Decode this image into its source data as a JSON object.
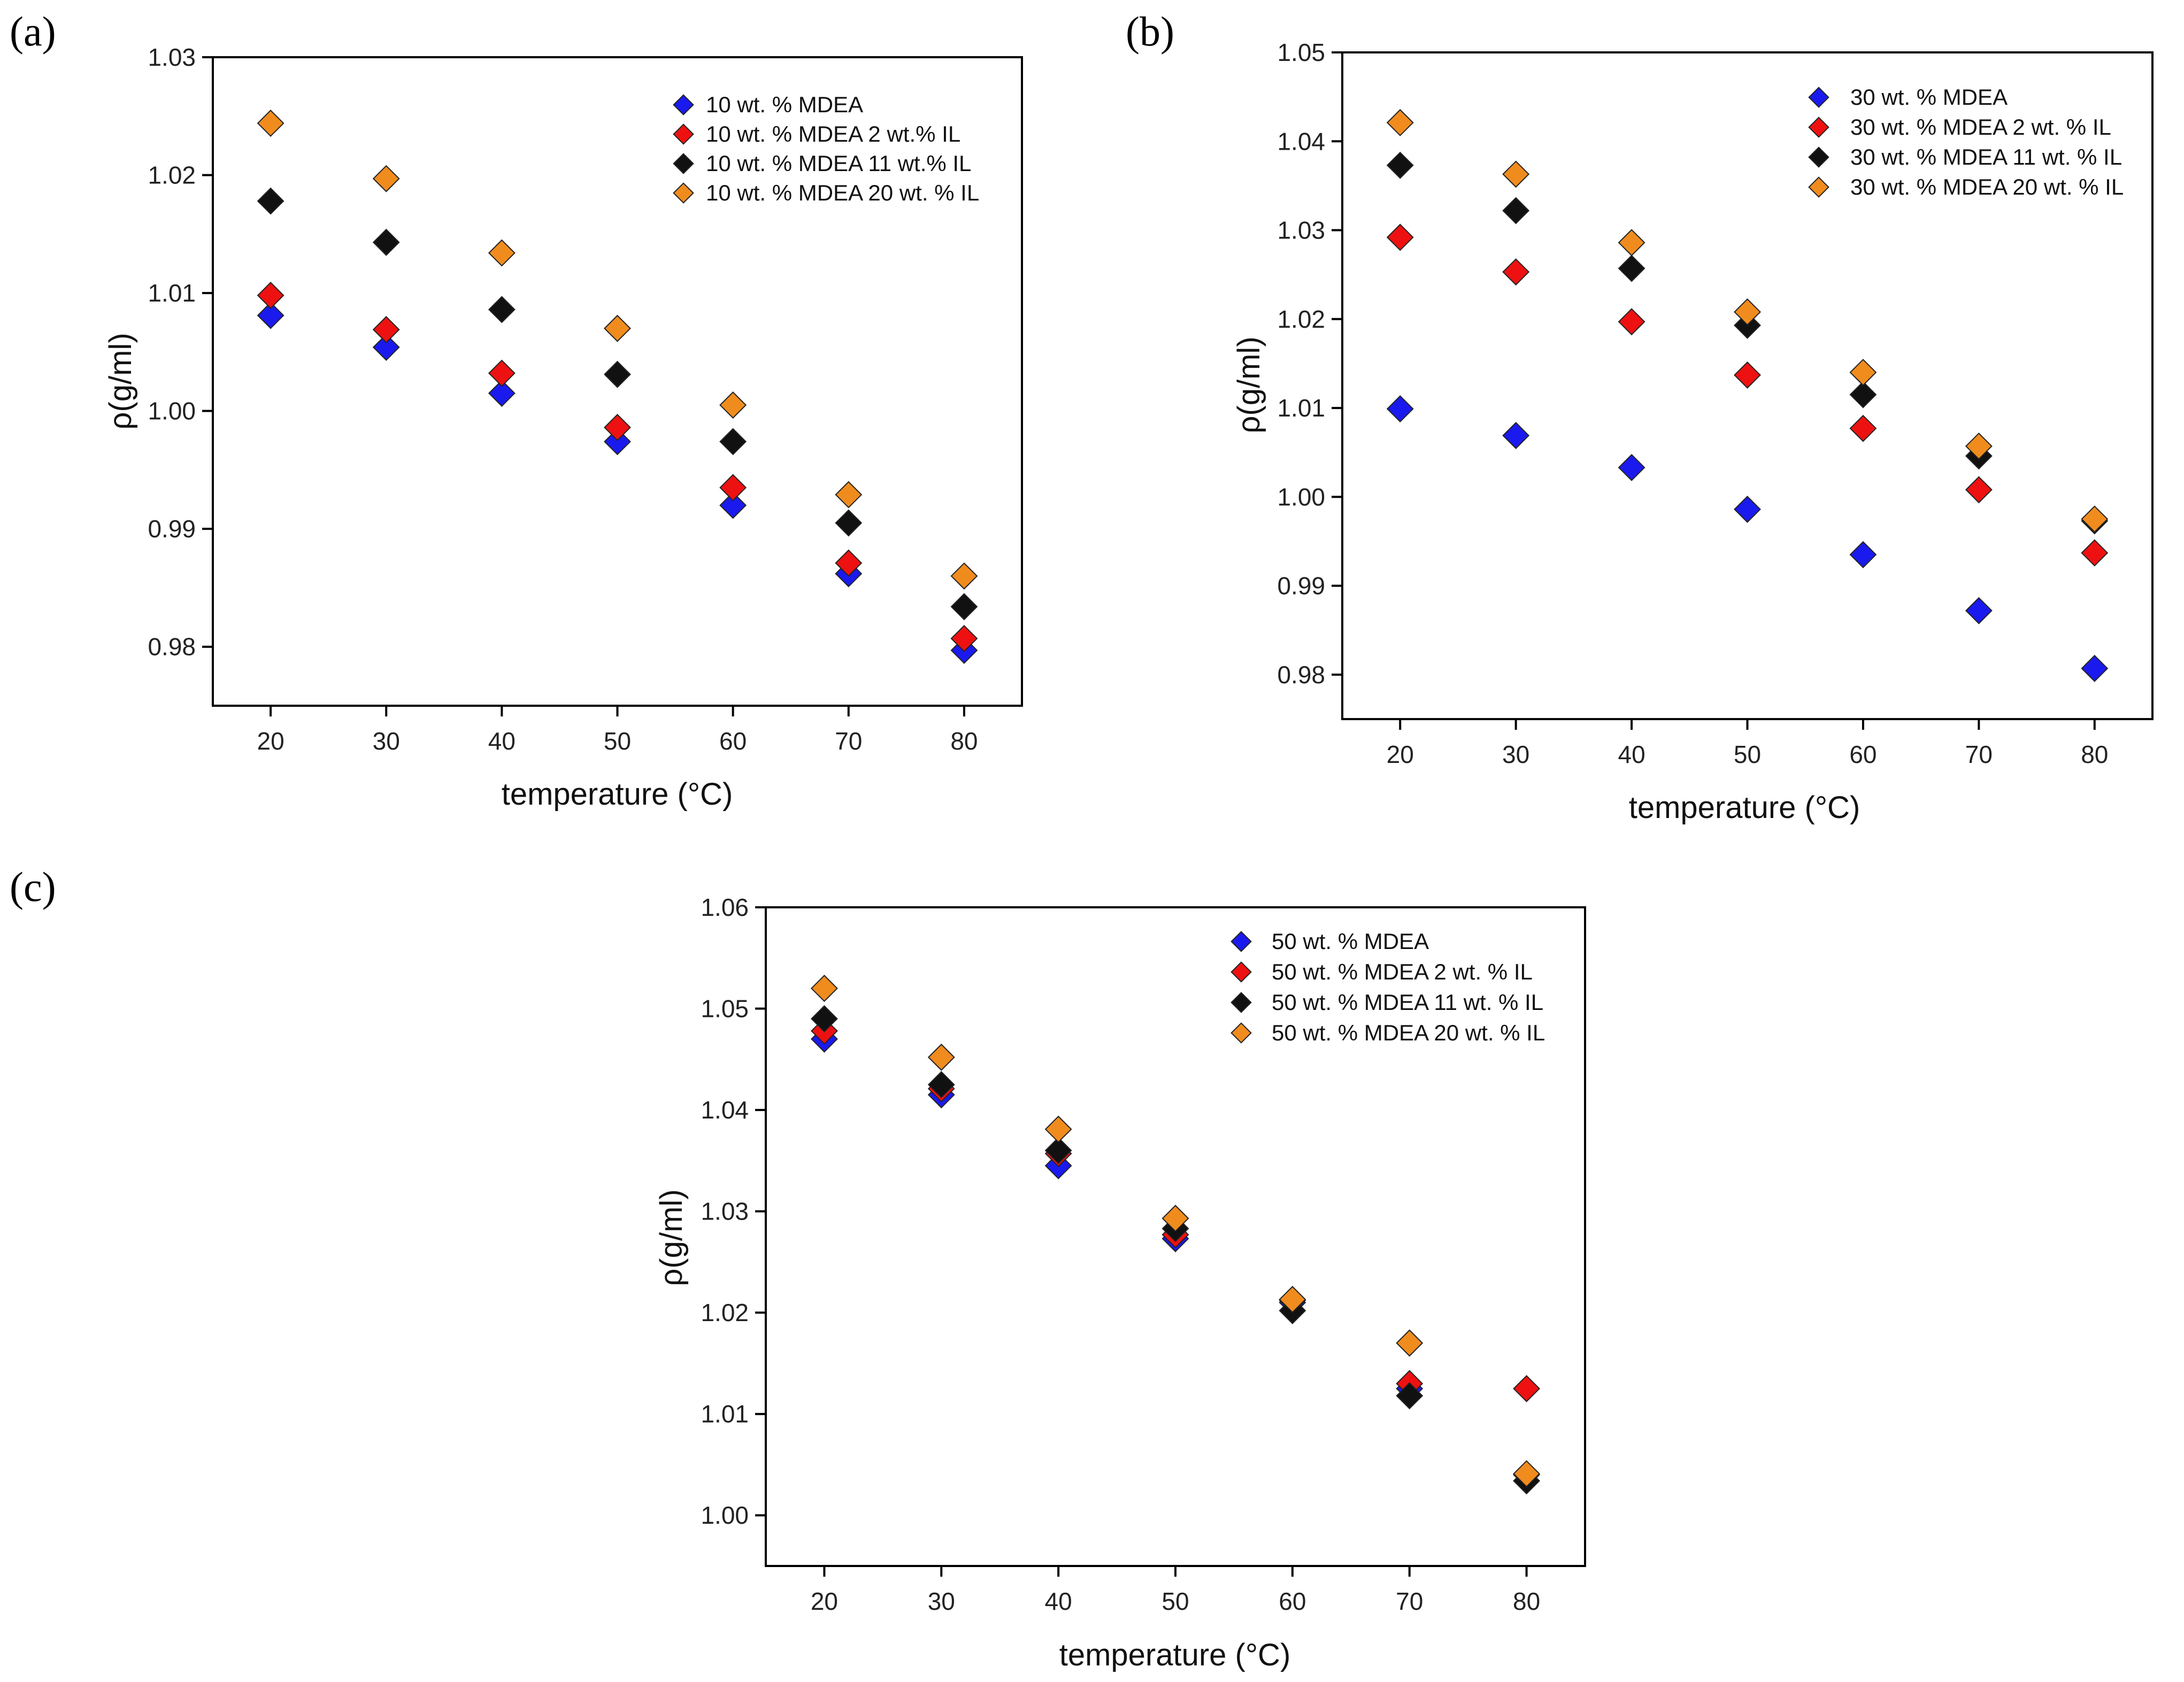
{
  "series_colors": [
    "#1a1aee",
    "#ee1111",
    "#111111",
    "#f08c1e"
  ],
  "chart_data": [
    {
      "panel_label": "(a)",
      "type": "scatter",
      "x": [
        20,
        30,
        40,
        50,
        60,
        70,
        80
      ],
      "xlim": [
        15,
        85
      ],
      "ylim": [
        0.975,
        1.03
      ],
      "x_tick_labels": [
        "20",
        "30",
        "40",
        "50",
        "60",
        "70",
        "80"
      ],
      "y_tick_labels": [
        "0.98",
        "0.99",
        "1.00",
        "1.01",
        "1.02",
        "1.03"
      ],
      "xlabel": "temperature (°C)",
      "ylabel": "ρ(g/ml)",
      "legend_position": "top-right",
      "series": [
        {
          "name": "10 wt. % MDEA",
          "values": [
            1.0081,
            1.0054,
            1.0015,
            0.9974,
            0.992,
            0.9862,
            0.9797
          ]
        },
        {
          "name": "10 wt. % MDEA 2 wt.% IL",
          "values": [
            1.0098,
            1.0069,
            1.0032,
            0.9986,
            0.9935,
            0.9871,
            0.9807
          ]
        },
        {
          "name": "10 wt. % MDEA 11 wt.% IL",
          "values": [
            1.0178,
            1.0143,
            1.0086,
            1.0031,
            0.9974,
            0.9905,
            0.9834
          ]
        },
        {
          "name": "10 wt. % MDEA 20 wt. % IL",
          "values": [
            1.0244,
            1.0197,
            1.0134,
            1.007,
            1.0005,
            0.9929,
            0.986
          ]
        }
      ]
    },
    {
      "panel_label": "(b)",
      "type": "scatter",
      "x": [
        20,
        30,
        40,
        50,
        60,
        70,
        80
      ],
      "xlim": [
        15,
        85
      ],
      "ylim": [
        0.975,
        1.05
      ],
      "x_tick_labels": [
        "20",
        "30",
        "40",
        "50",
        "60",
        "70",
        "80"
      ],
      "y_tick_labels": [
        "0.98",
        "0.99",
        "1.00",
        "1.01",
        "1.02",
        "1.03",
        "1.04",
        "1.05"
      ],
      "xlabel": "temperature (°C)",
      "ylabel": "ρ(g/ml)",
      "legend_position": "top-right",
      "series": [
        {
          "name": "30 wt. % MDEA",
          "values": [
            1.0099,
            1.0069,
            1.0033,
            0.9986,
            0.9935,
            0.9872,
            0.9807
          ]
        },
        {
          "name": "30 wt. % MDEA 2 wt. % IL",
          "values": [
            1.0292,
            1.0253,
            1.0197,
            1.0137,
            1.0077,
            1.0008,
            0.9937
          ]
        },
        {
          "name": "30 wt. % MDEA 11 wt. % IL",
          "values": [
            1.0373,
            1.0322,
            1.0257,
            1.0193,
            1.0115,
            1.0046,
            0.9973
          ]
        },
        {
          "name": "30 wt. % MDEA 20 wt. % IL",
          "values": [
            1.0421,
            1.0363,
            1.0286,
            1.0208,
            1.014,
            1.0057,
            0.9975
          ]
        }
      ]
    },
    {
      "panel_label": "(c)",
      "type": "scatter",
      "x": [
        20,
        30,
        40,
        50,
        60,
        70,
        80
      ],
      "xlim": [
        15,
        85
      ],
      "ylim": [
        0.995,
        1.06
      ],
      "x_tick_labels": [
        "20",
        "30",
        "40",
        "50",
        "60",
        "70",
        "80"
      ],
      "y_tick_labels": [
        "1.00",
        "1.01",
        "1.02",
        "1.03",
        "1.04",
        "1.05",
        "1.06"
      ],
      "xlabel": "temperature (°C)",
      "ylabel": "ρ(g/ml)",
      "legend_position": "top-right",
      "series": [
        {
          "name": "50 wt. % MDEA",
          "values": [
            1.047,
            1.0415,
            1.0345,
            1.0273,
            1.021,
            1.0125,
            1.004
          ]
        },
        {
          "name": "50 wt. % MDEA 2 wt. % IL",
          "values": [
            1.0478,
            1.0421,
            1.0357,
            1.0277,
            1.0212,
            1.013,
            1.0125
          ]
        },
        {
          "name": "50 wt. % MDEA 11 wt. % IL",
          "values": [
            1.049,
            1.0425,
            1.036,
            1.0283,
            1.0202,
            1.0118,
            1.0034
          ]
        },
        {
          "name": "50 wt. % MDEA 20 wt. % IL",
          "values": [
            1.052,
            1.0452,
            1.0381,
            1.0293,
            1.0213,
            1.017,
            1.0041
          ]
        }
      ]
    }
  ]
}
